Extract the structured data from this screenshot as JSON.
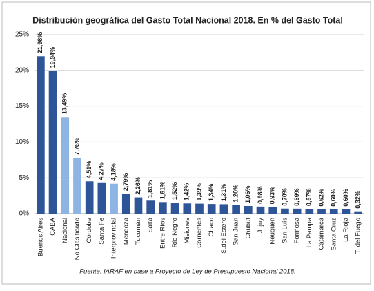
{
  "chart_data": {
    "type": "bar",
    "title": "Distribución geográfica del Gasto Total Nacional 2018. En % del Gasto Total",
    "source": "Fuente: IARAF en base a Proyecto de Ley de Presupuesto Nacional 2018.",
    "categories": [
      "Buenos Aires",
      "CABA",
      "Nacional",
      "No Clasificado",
      "Córdoba",
      "Santa Fe",
      "Interprovincial",
      "Mendoza",
      "Tucumán",
      "Salta",
      "Entre Ríos",
      "Río Negro",
      "Misiones",
      "Corrientes",
      "Chaco",
      "S.del Estero",
      "San Juan",
      "Chubut",
      "Jujuy",
      "Neuquén",
      "San Luis",
      "Formosa",
      "La Pampa",
      "Catamarca",
      "Santa Cruz",
      "La Rioja",
      "T. del Fuego"
    ],
    "values": [
      21.98,
      19.94,
      13.49,
      7.76,
      4.51,
      4.27,
      4.18,
      2.79,
      2.26,
      1.81,
      1.61,
      1.52,
      1.42,
      1.39,
      1.34,
      1.31,
      1.2,
      1.06,
      0.98,
      0.93,
      0.7,
      0.69,
      0.67,
      0.62,
      0.6,
      0.6,
      0.32
    ],
    "value_labels": [
      "21,98%",
      "19,94%",
      "13,49%",
      "7,76%",
      "4,51%",
      "4,27%",
      "4,18%",
      "2,79%",
      "2,26%",
      "1,81%",
      "1,61%",
      "1,52%",
      "1,42%",
      "1,39%",
      "1,34%",
      "1,31%",
      "1,20%",
      "1,06%",
      "0,98%",
      "0,93%",
      "0,70%",
      "0,69%",
      "0,67%",
      "0,62%",
      "0,60%",
      "0,60%",
      "0,32%"
    ],
    "colors": [
      "#2e5597",
      "#2e5597",
      "#8eb4e3",
      "#8eb4e3",
      "#2e5597",
      "#2e5597",
      "#8eb4e3",
      "#2e5597",
      "#2e5597",
      "#2e5597",
      "#2e5597",
      "#2e5597",
      "#2e5597",
      "#2e5597",
      "#2e5597",
      "#2e5597",
      "#2e5597",
      "#2e5597",
      "#2e5597",
      "#2e5597",
      "#2e5597",
      "#2e5597",
      "#2e5597",
      "#2e5597",
      "#2e5597",
      "#2e5597",
      "#2e5597"
    ],
    "ylim": [
      0,
      25
    ],
    "yticks": [
      {
        "value": 0,
        "label": "0%"
      },
      {
        "value": 5,
        "label": "5%"
      },
      {
        "value": 10,
        "label": "10%"
      },
      {
        "value": 15,
        "label": "15%"
      },
      {
        "value": 20,
        "label": "20%"
      },
      {
        "value": 25,
        "label": "25%"
      }
    ],
    "grid": true
  }
}
